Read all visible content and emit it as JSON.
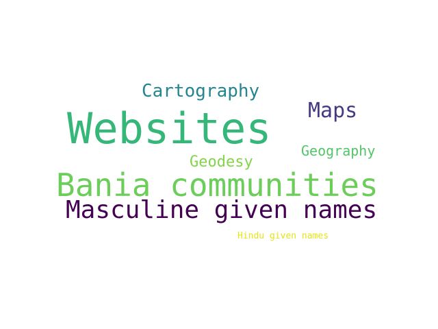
{
  "words": [
    {
      "id": "websites",
      "text": "Websites",
      "color": "#35b779"
    },
    {
      "id": "bania",
      "text": "Bania communities",
      "color": "#6ccd5a"
    },
    {
      "id": "masculine",
      "text": "Masculine given names",
      "color": "#440154"
    },
    {
      "id": "cartography",
      "text": "Cartography",
      "color": "#25858e"
    },
    {
      "id": "maps",
      "text": "Maps",
      "color": "#443983"
    },
    {
      "id": "geography",
      "text": "Geography",
      "color": "#52c569"
    },
    {
      "id": "geodesy",
      "text": "Geodesy",
      "color": "#84d44b"
    },
    {
      "id": "hindu",
      "text": "Hindu given names",
      "color": "#e5e419"
    }
  ]
}
